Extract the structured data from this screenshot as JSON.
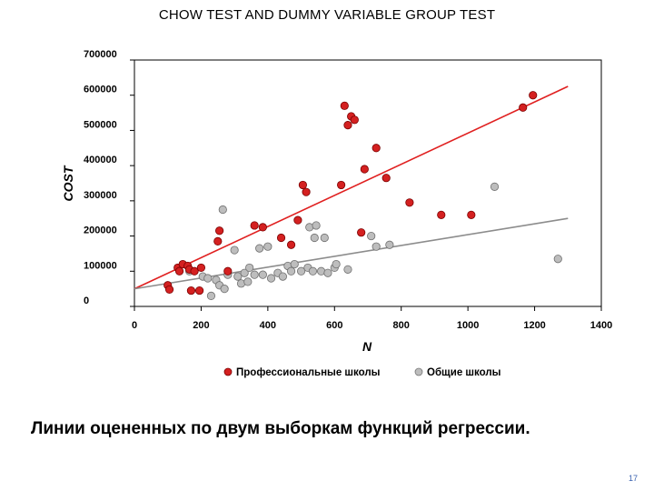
{
  "header": {
    "title": "CHOW TEST AND DUMMY VARIABLE GROUP TEST"
  },
  "caption": "Линии оцененных по двум выборкам функций регрессии.",
  "page_number": "17",
  "colors": {
    "vocational": "#d42020",
    "general": "#bdbdbd",
    "line_vocational": "#e02020",
    "line_general": "#8c8c8c"
  },
  "chart_data": {
    "type": "scatter",
    "xlabel": "N",
    "ylabel": "COST",
    "xlim": [
      0,
      1400
    ],
    "ylim": [
      0,
      700000
    ],
    "x_ticks": [
      "0",
      "200",
      "400",
      "600",
      "800",
      "1000",
      "1200",
      "1400"
    ],
    "y_ticks": [
      "0",
      "100000",
      "200000",
      "300000",
      "400000",
      "500000",
      "600000",
      "700000"
    ],
    "legend_position": "bottom",
    "series": [
      {
        "name": "Профессиональные школы",
        "points": [
          [
            100,
            60000
          ],
          [
            105,
            48000
          ],
          [
            130,
            110000
          ],
          [
            135,
            100000
          ],
          [
            145,
            120000
          ],
          [
            160,
            115000
          ],
          [
            165,
            105000
          ],
          [
            170,
            45000
          ],
          [
            180,
            100000
          ],
          [
            195,
            45000
          ],
          [
            200,
            110000
          ],
          [
            250,
            185000
          ],
          [
            255,
            215000
          ],
          [
            280,
            100000
          ],
          [
            360,
            230000
          ],
          [
            385,
            225000
          ],
          [
            440,
            195000
          ],
          [
            470,
            175000
          ],
          [
            490,
            245000
          ],
          [
            505,
            345000
          ],
          [
            515,
            325000
          ],
          [
            620,
            345000
          ],
          [
            630,
            570000
          ],
          [
            640,
            515000
          ],
          [
            650,
            540000
          ],
          [
            660,
            530000
          ],
          [
            680,
            210000
          ],
          [
            690,
            390000
          ],
          [
            725,
            450000
          ],
          [
            755,
            365000
          ],
          [
            825,
            295000
          ],
          [
            920,
            260000
          ],
          [
            1010,
            260000
          ],
          [
            1165,
            565000
          ],
          [
            1195,
            600000
          ]
        ]
      },
      {
        "name": "Общие школы",
        "points": [
          [
            165,
            100000
          ],
          [
            205,
            85000
          ],
          [
            220,
            80000
          ],
          [
            230,
            30000
          ],
          [
            245,
            75000
          ],
          [
            255,
            60000
          ],
          [
            265,
            275000
          ],
          [
            270,
            50000
          ],
          [
            280,
            90000
          ],
          [
            300,
            160000
          ],
          [
            310,
            85000
          ],
          [
            320,
            65000
          ],
          [
            330,
            95000
          ],
          [
            340,
            70000
          ],
          [
            345,
            110000
          ],
          [
            360,
            90000
          ],
          [
            375,
            165000
          ],
          [
            385,
            90000
          ],
          [
            400,
            170000
          ],
          [
            410,
            80000
          ],
          [
            430,
            95000
          ],
          [
            445,
            85000
          ],
          [
            460,
            115000
          ],
          [
            470,
            100000
          ],
          [
            480,
            120000
          ],
          [
            500,
            100000
          ],
          [
            520,
            110000
          ],
          [
            525,
            225000
          ],
          [
            535,
            100000
          ],
          [
            540,
            195000
          ],
          [
            545,
            230000
          ],
          [
            560,
            100000
          ],
          [
            570,
            195000
          ],
          [
            580,
            95000
          ],
          [
            600,
            110000
          ],
          [
            605,
            120000
          ],
          [
            640,
            105000
          ],
          [
            710,
            200000
          ],
          [
            725,
            170000
          ],
          [
            765,
            175000
          ],
          [
            1080,
            340000
          ],
          [
            1270,
            135000
          ]
        ]
      }
    ],
    "regression_lines": [
      {
        "name": "Профессиональные школы",
        "from": [
          0,
          50000
        ],
        "to": [
          1300,
          625000
        ]
      },
      {
        "name": "Общие школы",
        "from": [
          0,
          50000
        ],
        "to": [
          1300,
          250000
        ]
      }
    ]
  }
}
